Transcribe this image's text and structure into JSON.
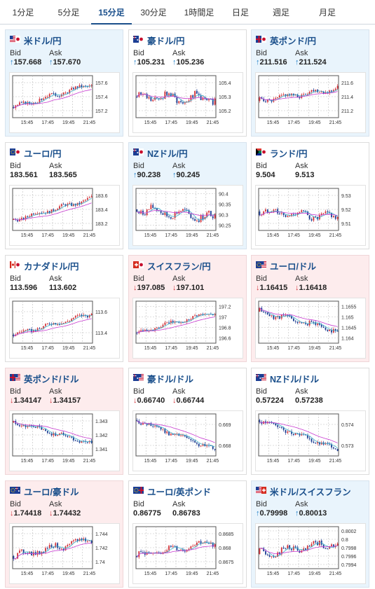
{
  "tabs": [
    {
      "label": "1分足",
      "active": false
    },
    {
      "label": "5分足",
      "active": false
    },
    {
      "label": "15分足",
      "active": true
    },
    {
      "label": "30分足",
      "active": false
    },
    {
      "label": "1時間足",
      "active": false
    },
    {
      "label": "日足",
      "active": false
    },
    {
      "label": "週足",
      "active": false
    },
    {
      "label": "月足",
      "active": false
    }
  ],
  "labels": {
    "bid": "Bid",
    "ask": "Ask"
  },
  "x_ticks": [
    "15:45",
    "17:45",
    "19:45",
    "21:45"
  ],
  "colors": {
    "up": "#1f7fc8",
    "down": "#d3333a",
    "ma_short": "#3bb0c9",
    "ma_long": "#c83bd0",
    "candle_up": "#d3333a",
    "candle_down": "#1c3e94"
  },
  "cards": [
    {
      "pair": "米ドル/円",
      "flag": "us-jp",
      "bg": "up",
      "dir": "up",
      "bid": "157.668",
      "ask": "157.670",
      "yticks": [
        "157.6",
        "157.4",
        "157.2"
      ],
      "trend": [
        0.25,
        0.8
      ],
      "wav": 0.15,
      "ma": "rise"
    },
    {
      "pair": "豪ドル/円",
      "flag": "au-jp",
      "bg": "flat",
      "dir": "up",
      "bid": "105.231",
      "ask": "105.236",
      "yticks": [
        "105.4",
        "105.3",
        "105.2"
      ],
      "trend": [
        0.5,
        0.45
      ],
      "wav": 0.35,
      "ma": "flat"
    },
    {
      "pair": "英ポンド/円",
      "flag": "gb-jp",
      "bg": "up",
      "dir": "up",
      "bid": "211.516",
      "ask": "211.524",
      "yticks": [
        "211.6",
        "211.4",
        "211.2"
      ],
      "trend": [
        0.4,
        0.7
      ],
      "wav": 0.2,
      "ma": "rise"
    },
    {
      "pair": "ユーロ/円",
      "flag": "eu-jp",
      "bg": "flat",
      "dir": "none",
      "bid": "183.561",
      "ask": "183.565",
      "yticks": [
        "183.6",
        "183.4",
        "183.2"
      ],
      "trend": [
        0.25,
        0.75
      ],
      "wav": 0.15,
      "ma": "rise"
    },
    {
      "pair": "NZドル/円",
      "flag": "nz-jp",
      "bg": "up",
      "dir": "up",
      "bid": "90.238",
      "ask": "90.245",
      "yticks": [
        "90.4",
        "90.35",
        "90.3",
        "90.25"
      ],
      "trend": [
        0.5,
        0.3
      ],
      "wav": 0.35,
      "ma": "flat"
    },
    {
      "pair": "ランド/円",
      "flag": "za-jp",
      "bg": "flat",
      "dir": "none",
      "bid": "9.504",
      "ask": "9.513",
      "yticks": [
        "9.53",
        "9.52",
        "9.51"
      ],
      "trend": [
        0.45,
        0.3
      ],
      "wav": 0.3,
      "ma": "flat"
    },
    {
      "pair": "カナダドル/円",
      "flag": "ca-jp",
      "bg": "flat",
      "dir": "none",
      "bid": "113.596",
      "ask": "113.602",
      "yticks": [
        "113.6",
        "113.4"
      ],
      "trend": [
        0.2,
        0.7
      ],
      "wav": 0.15,
      "ma": "rise"
    },
    {
      "pair": "スイスフラン/円",
      "flag": "ch-jp",
      "bg": "down",
      "dir": "down",
      "bid": "197.085",
      "ask": "197.101",
      "yticks": [
        "197.2",
        "197",
        "196.8",
        "196.6"
      ],
      "trend": [
        0.25,
        0.75
      ],
      "wav": 0.15,
      "ma": "rise"
    },
    {
      "pair": "ユーロ/ドル",
      "flag": "eu-us",
      "bg": "down",
      "dir": "down",
      "bid": "1.16415",
      "ask": "1.16418",
      "yticks": [
        "1.1655",
        "1.165",
        "1.1645",
        "1.164"
      ],
      "trend": [
        0.75,
        0.3
      ],
      "wav": 0.2,
      "ma": "fall"
    },
    {
      "pair": "英ポンド/ドル",
      "flag": "gb-us",
      "bg": "down",
      "dir": "down",
      "bid": "1.34147",
      "ask": "1.34157",
      "yticks": [
        "1.343",
        "1.342",
        "1.341"
      ],
      "trend": [
        0.8,
        0.3
      ],
      "wav": 0.15,
      "ma": "fall"
    },
    {
      "pair": "豪ドル/ドル",
      "flag": "au-us",
      "bg": "flat",
      "dir": "down",
      "bid": "0.66740",
      "ask": "0.66744",
      "yticks": [
        "0.669",
        "0.668"
      ],
      "trend": [
        0.85,
        0.15
      ],
      "wav": 0.15,
      "ma": "fall"
    },
    {
      "pair": "NZドル/ドル",
      "flag": "nz-us",
      "bg": "flat",
      "dir": "none",
      "bid": "0.57224",
      "ask": "0.57238",
      "yticks": [
        "0.574",
        "0.573"
      ],
      "trend": [
        0.85,
        0.15
      ],
      "wav": 0.15,
      "ma": "fall"
    },
    {
      "pair": "ユーロ/豪ドル",
      "flag": "eu-au",
      "bg": "down",
      "dir": "down",
      "bid": "1.74418",
      "ask": "1.74432",
      "yticks": [
        "1.744",
        "1.742",
        "1.74"
      ],
      "trend": [
        0.3,
        0.7
      ],
      "wav": 0.25,
      "ma": "rise"
    },
    {
      "pair": "ユーロ/英ポンド",
      "flag": "eu-gb",
      "bg": "flat",
      "dir": "none",
      "bid": "0.86775",
      "ask": "0.86783",
      "yticks": [
        "0.8685",
        "0.868",
        "0.8675"
      ],
      "trend": [
        0.3,
        0.65
      ],
      "wav": 0.25,
      "ma": "rise"
    },
    {
      "pair": "米ドル/スイスフラン",
      "flag": "us-ch",
      "bg": "up",
      "dir": "up",
      "bid": "0.79998",
      "ask": "0.80013",
      "yticks": [
        "0.8002",
        "0.8",
        "0.7998",
        "0.7996",
        "0.7994"
      ],
      "trend": [
        0.35,
        0.6
      ],
      "wav": 0.3,
      "ma": "rise"
    }
  ]
}
